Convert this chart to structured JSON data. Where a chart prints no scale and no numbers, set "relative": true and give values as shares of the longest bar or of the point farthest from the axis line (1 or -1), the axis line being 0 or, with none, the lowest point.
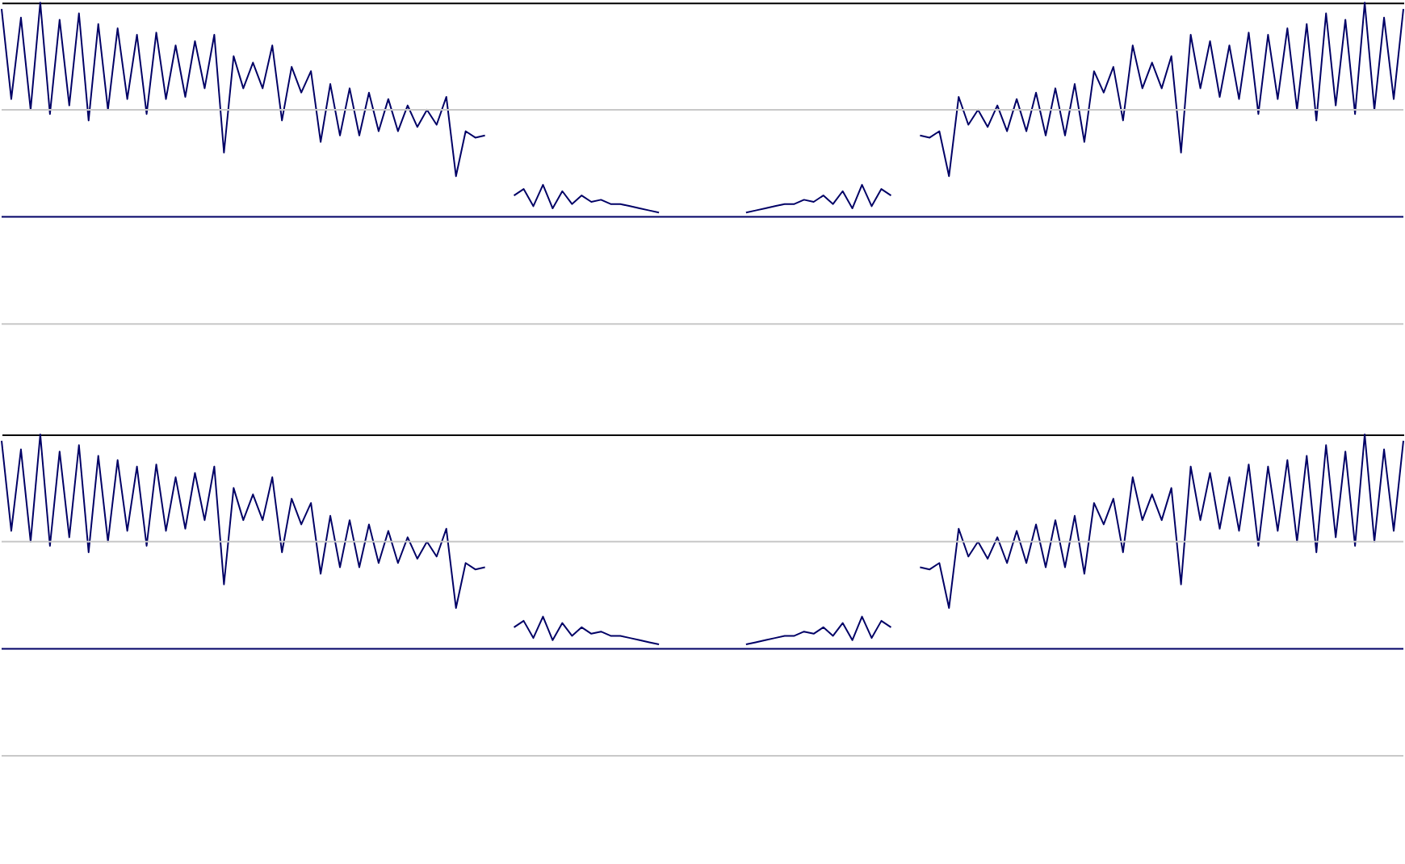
{
  "chart_data": [
    {
      "type": "line",
      "relative": true,
      "legend": false,
      "marker": "none",
      "line_style": "solid",
      "ref_lines": [
        {
          "axis": "y",
          "value": 0.5,
          "color": "#c8c8c8"
        },
        {
          "axis": "y",
          "value": -0.5,
          "color": "#c8c8c8"
        }
      ],
      "categories": [
        null,
        null,
        null,
        null,
        null,
        null,
        null,
        null,
        null,
        null,
        null,
        null,
        null,
        null,
        null,
        null,
        null,
        null,
        null,
        null,
        null,
        null,
        null,
        null,
        null,
        null,
        null,
        null,
        null,
        null,
        null,
        null,
        null,
        null,
        null,
        null,
        null,
        null,
        null,
        null,
        null,
        null,
        null,
        null,
        null,
        null,
        null,
        null,
        null,
        null,
        null,
        null,
        null,
        null,
        null,
        null,
        null,
        null,
        null,
        null,
        null,
        null,
        null,
        null,
        null,
        null,
        null,
        null,
        null,
        null,
        null,
        null,
        null,
        null,
        null,
        null,
        null,
        null,
        null,
        null,
        null,
        null,
        null,
        null,
        null,
        null,
        null,
        null,
        null,
        null,
        null,
        null,
        null,
        null,
        null,
        null,
        null,
        null,
        null,
        null,
        null,
        null,
        null,
        null,
        null,
        null,
        null,
        null,
        null,
        null,
        null,
        null,
        null,
        null,
        null,
        null,
        null,
        null,
        null,
        null,
        null,
        null,
        null,
        null,
        null,
        null,
        null,
        null,
        null,
        null,
        null,
        null,
        null,
        null,
        null,
        null,
        null,
        null,
        null,
        null,
        null,
        null,
        null,
        null,
        null,
        null
      ],
      "series": [
        {
          "color": "#000066",
          "values": [
            0.97,
            0.55,
            0.93,
            0.5,
            1.0,
            0.48,
            0.92,
            0.52,
            0.95,
            0.45,
            0.9,
            0.5,
            0.88,
            0.55,
            0.85,
            0.48,
            0.86,
            0.55,
            0.8,
            0.56,
            0.82,
            0.6,
            0.85,
            0.3,
            0.75,
            0.6,
            0.72,
            0.6,
            0.8,
            0.45,
            0.7,
            0.58,
            0.68,
            0.35,
            0.62,
            0.38,
            0.6,
            0.38,
            0.58,
            0.4,
            0.55,
            0.4,
            0.52,
            0.42,
            0.5,
            0.43,
            0.56,
            0.19,
            0.4,
            0.37,
            0.38,
            null,
            null,
            0.1,
            0.13,
            0.05,
            0.15,
            0.04,
            0.12,
            0.06,
            0.1,
            0.07,
            0.08,
            0.06,
            0.06,
            0.05,
            0.04,
            0.03,
            0.02,
            null,
            null,
            null,
            null,
            null,
            null,
            null,
            null,
            0.02,
            0.03,
            0.04,
            0.05,
            0.06,
            0.06,
            0.08,
            0.07,
            0.1,
            0.06,
            0.12,
            0.04,
            0.15,
            0.05,
            0.13,
            0.1,
            null,
            null,
            0.38,
            0.37,
            0.4,
            0.19,
            0.56,
            0.43,
            0.5,
            0.42,
            0.52,
            0.4,
            0.55,
            0.4,
            0.58,
            0.38,
            0.6,
            0.38,
            0.62,
            0.35,
            0.68,
            0.58,
            0.7,
            0.45,
            0.8,
            0.6,
            0.72,
            0.6,
            0.75,
            0.3,
            0.85,
            0.6,
            0.82,
            0.56,
            0.8,
            0.55,
            0.86,
            0.48,
            0.85,
            0.55,
            0.88,
            0.5,
            0.9,
            0.45,
            0.95,
            0.52,
            0.92,
            0.48,
            1.0,
            0.5,
            0.93,
            0.55,
            0.97
          ]
        }
      ]
    },
    {
      "type": "line",
      "relative": true,
      "legend": false,
      "marker": "none",
      "line_style": "solid",
      "ref_lines": [
        {
          "axis": "y",
          "value": 0.5,
          "color": "#c8c8c8"
        },
        {
          "axis": "y",
          "value": -0.5,
          "color": "#c8c8c8"
        }
      ],
      "categories": [
        null,
        null,
        null,
        null,
        null,
        null,
        null,
        null,
        null,
        null,
        null,
        null,
        null,
        null,
        null,
        null,
        null,
        null,
        null,
        null,
        null,
        null,
        null,
        null,
        null,
        null,
        null,
        null,
        null,
        null,
        null,
        null,
        null,
        null,
        null,
        null,
        null,
        null,
        null,
        null,
        null,
        null,
        null,
        null,
        null,
        null,
        null,
        null,
        null,
        null,
        null,
        null,
        null,
        null,
        null,
        null,
        null,
        null,
        null,
        null,
        null,
        null,
        null,
        null,
        null,
        null,
        null,
        null,
        null,
        null,
        null,
        null,
        null,
        null,
        null,
        null,
        null,
        null,
        null,
        null,
        null,
        null,
        null,
        null,
        null,
        null,
        null,
        null,
        null,
        null,
        null,
        null,
        null,
        null,
        null,
        null,
        null,
        null,
        null,
        null,
        null,
        null,
        null,
        null,
        null,
        null,
        null,
        null,
        null,
        null,
        null,
        null,
        null,
        null,
        null,
        null,
        null,
        null,
        null,
        null,
        null,
        null,
        null,
        null,
        null,
        null,
        null,
        null,
        null,
        null,
        null,
        null,
        null,
        null,
        null,
        null,
        null,
        null,
        null,
        null,
        null,
        null,
        null,
        null,
        null,
        null
      ],
      "series": [
        {
          "color": "#000066",
          "values": [
            0.97,
            0.55,
            0.93,
            0.5,
            1.0,
            0.48,
            0.92,
            0.52,
            0.95,
            0.45,
            0.9,
            0.5,
            0.88,
            0.55,
            0.85,
            0.48,
            0.86,
            0.55,
            0.8,
            0.56,
            0.82,
            0.6,
            0.85,
            0.3,
            0.75,
            0.6,
            0.72,
            0.6,
            0.8,
            0.45,
            0.7,
            0.58,
            0.68,
            0.35,
            0.62,
            0.38,
            0.6,
            0.38,
            0.58,
            0.4,
            0.55,
            0.4,
            0.52,
            0.42,
            0.5,
            0.43,
            0.56,
            0.19,
            0.4,
            0.37,
            0.38,
            null,
            null,
            0.1,
            0.13,
            0.05,
            0.15,
            0.04,
            0.12,
            0.06,
            0.1,
            0.07,
            0.08,
            0.06,
            0.06,
            0.05,
            0.04,
            0.03,
            0.02,
            null,
            null,
            null,
            null,
            null,
            null,
            null,
            null,
            0.02,
            0.03,
            0.04,
            0.05,
            0.06,
            0.06,
            0.08,
            0.07,
            0.1,
            0.06,
            0.12,
            0.04,
            0.15,
            0.05,
            0.13,
            0.1,
            null,
            null,
            0.38,
            0.37,
            0.4,
            0.19,
            0.56,
            0.43,
            0.5,
            0.42,
            0.52,
            0.4,
            0.55,
            0.4,
            0.58,
            0.38,
            0.6,
            0.38,
            0.62,
            0.35,
            0.68,
            0.58,
            0.7,
            0.45,
            0.8,
            0.6,
            0.72,
            0.6,
            0.75,
            0.3,
            0.85,
            0.6,
            0.82,
            0.56,
            0.8,
            0.55,
            0.86,
            0.48,
            0.85,
            0.55,
            0.88,
            0.5,
            0.9,
            0.45,
            0.95,
            0.52,
            0.92,
            0.48,
            1.0,
            0.5,
            0.93,
            0.55,
            0.97
          ]
        }
      ]
    }
  ]
}
